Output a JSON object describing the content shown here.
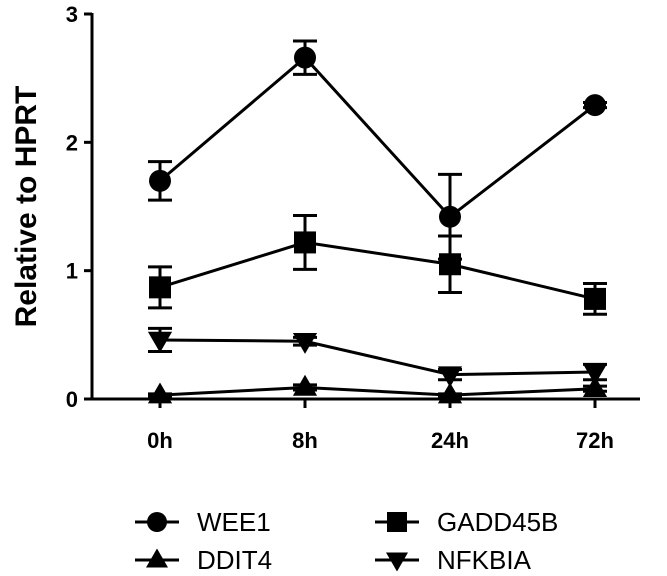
{
  "chart_data": {
    "type": "line",
    "categories": [
      "0h",
      "8h",
      "24h",
      "72h"
    ],
    "ylabel": "Relative to HPRT",
    "ylim": [
      0,
      3
    ],
    "yticks": [
      0,
      1,
      2,
      3
    ],
    "grid": false,
    "legend_position": "bottom",
    "series": [
      {
        "name": "WEE1",
        "marker": "circle",
        "values": [
          1.7,
          2.66,
          1.42,
          2.29
        ],
        "errors": [
          0.15,
          0.13,
          0.33,
          0.02
        ]
      },
      {
        "name": "GADD45B",
        "marker": "square",
        "values": [
          0.87,
          1.22,
          1.05,
          0.78
        ],
        "errors": [
          0.16,
          0.21,
          0.22,
          0.12
        ]
      },
      {
        "name": "DDIT4",
        "marker": "triangle-up",
        "values": [
          0.03,
          0.09,
          0.03,
          0.08
        ],
        "errors": [
          0.01,
          0.02,
          0.01,
          0.02
        ]
      },
      {
        "name": "NFKBIA",
        "marker": "triangle-down",
        "values": [
          0.46,
          0.45,
          0.19,
          0.21
        ],
        "errors": [
          0.09,
          0.03,
          0.04,
          0.06
        ]
      }
    ]
  }
}
